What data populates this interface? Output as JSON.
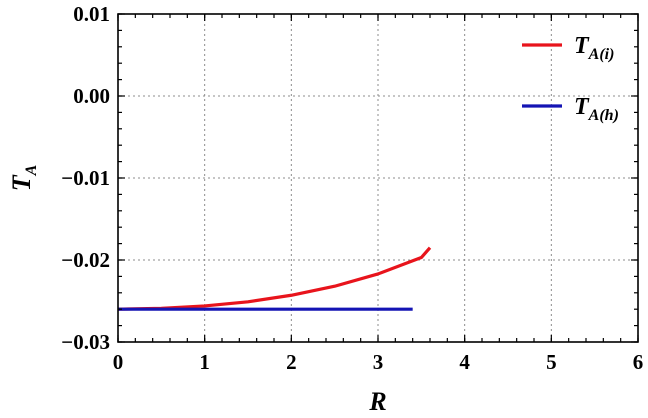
{
  "chart_data": {
    "type": "line",
    "title": "",
    "xlabel": "R",
    "ylabel": "T_A",
    "xlim": [
      0,
      6
    ],
    "ylim": [
      -0.03,
      0.01
    ],
    "x_ticks": [
      0,
      1,
      2,
      3,
      4,
      5,
      6
    ],
    "x_tick_labels": [
      "0",
      "1",
      "2",
      "3",
      "4",
      "5",
      "6"
    ],
    "y_ticks": [
      0.01,
      0.0,
      -0.01,
      -0.02,
      -0.03
    ],
    "y_tick_labels": [
      "0.01",
      "0.00",
      "−0.01",
      "−0.02",
      "−0.03"
    ],
    "grid": true,
    "legend_position": "top-right",
    "series": [
      {
        "name": "T_A(i)",
        "label_main": "T",
        "label_sub": "A(i)",
        "color": "#e8141c",
        "x": [
          0.0,
          0.5,
          1.0,
          1.5,
          2.0,
          2.5,
          3.0,
          3.5,
          3.6
        ],
        "y": [
          -0.026,
          -0.0259,
          -0.0256,
          -0.0251,
          -0.0243,
          -0.0232,
          -0.0217,
          -0.0197,
          -0.0185
        ]
      },
      {
        "name": "T_A(h)",
        "label_main": "T",
        "label_sub": "A(h)",
        "color": "#1414b4",
        "x": [
          0.0,
          3.4
        ],
        "y": [
          -0.026,
          -0.026
        ]
      }
    ]
  }
}
